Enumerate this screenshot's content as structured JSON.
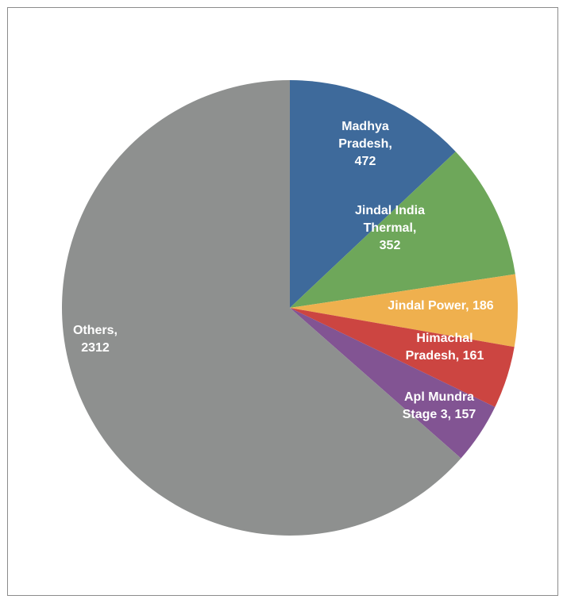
{
  "chart_data": {
    "type": "pie",
    "title": "",
    "slices": [
      {
        "label_lines": [
          "Madhya",
          "Pradesh,",
          "472"
        ],
        "category": "Madhya Pradesh",
        "value": 472,
        "color": "#3E6A9B"
      },
      {
        "label_lines": [
          "Jindal India",
          "Thermal,",
          "352"
        ],
        "category": "Jindal India Thermal",
        "value": 352,
        "color": "#6EA75A"
      },
      {
        "label_lines": [
          "Jindal Power, 186"
        ],
        "category": "Jindal Power",
        "value": 186,
        "color": "#EFB04E"
      },
      {
        "label_lines": [
          "Himachal",
          "Pradesh, 161"
        ],
        "category": "Himachal Pradesh",
        "value": 161,
        "color": "#CC4541"
      },
      {
        "label_lines": [
          "Apl Mundra",
          "Stage 3, 157"
        ],
        "category": "Apl Mundra Stage 3",
        "value": 157,
        "color": "#825493"
      },
      {
        "label_lines": [
          "Others,",
          "2312"
        ],
        "category": "Others",
        "value": 2312,
        "color": "#8E908F"
      }
    ],
    "start_angle_deg": 0,
    "direction": "clockwise",
    "legend": "none",
    "label_position": "inside"
  }
}
